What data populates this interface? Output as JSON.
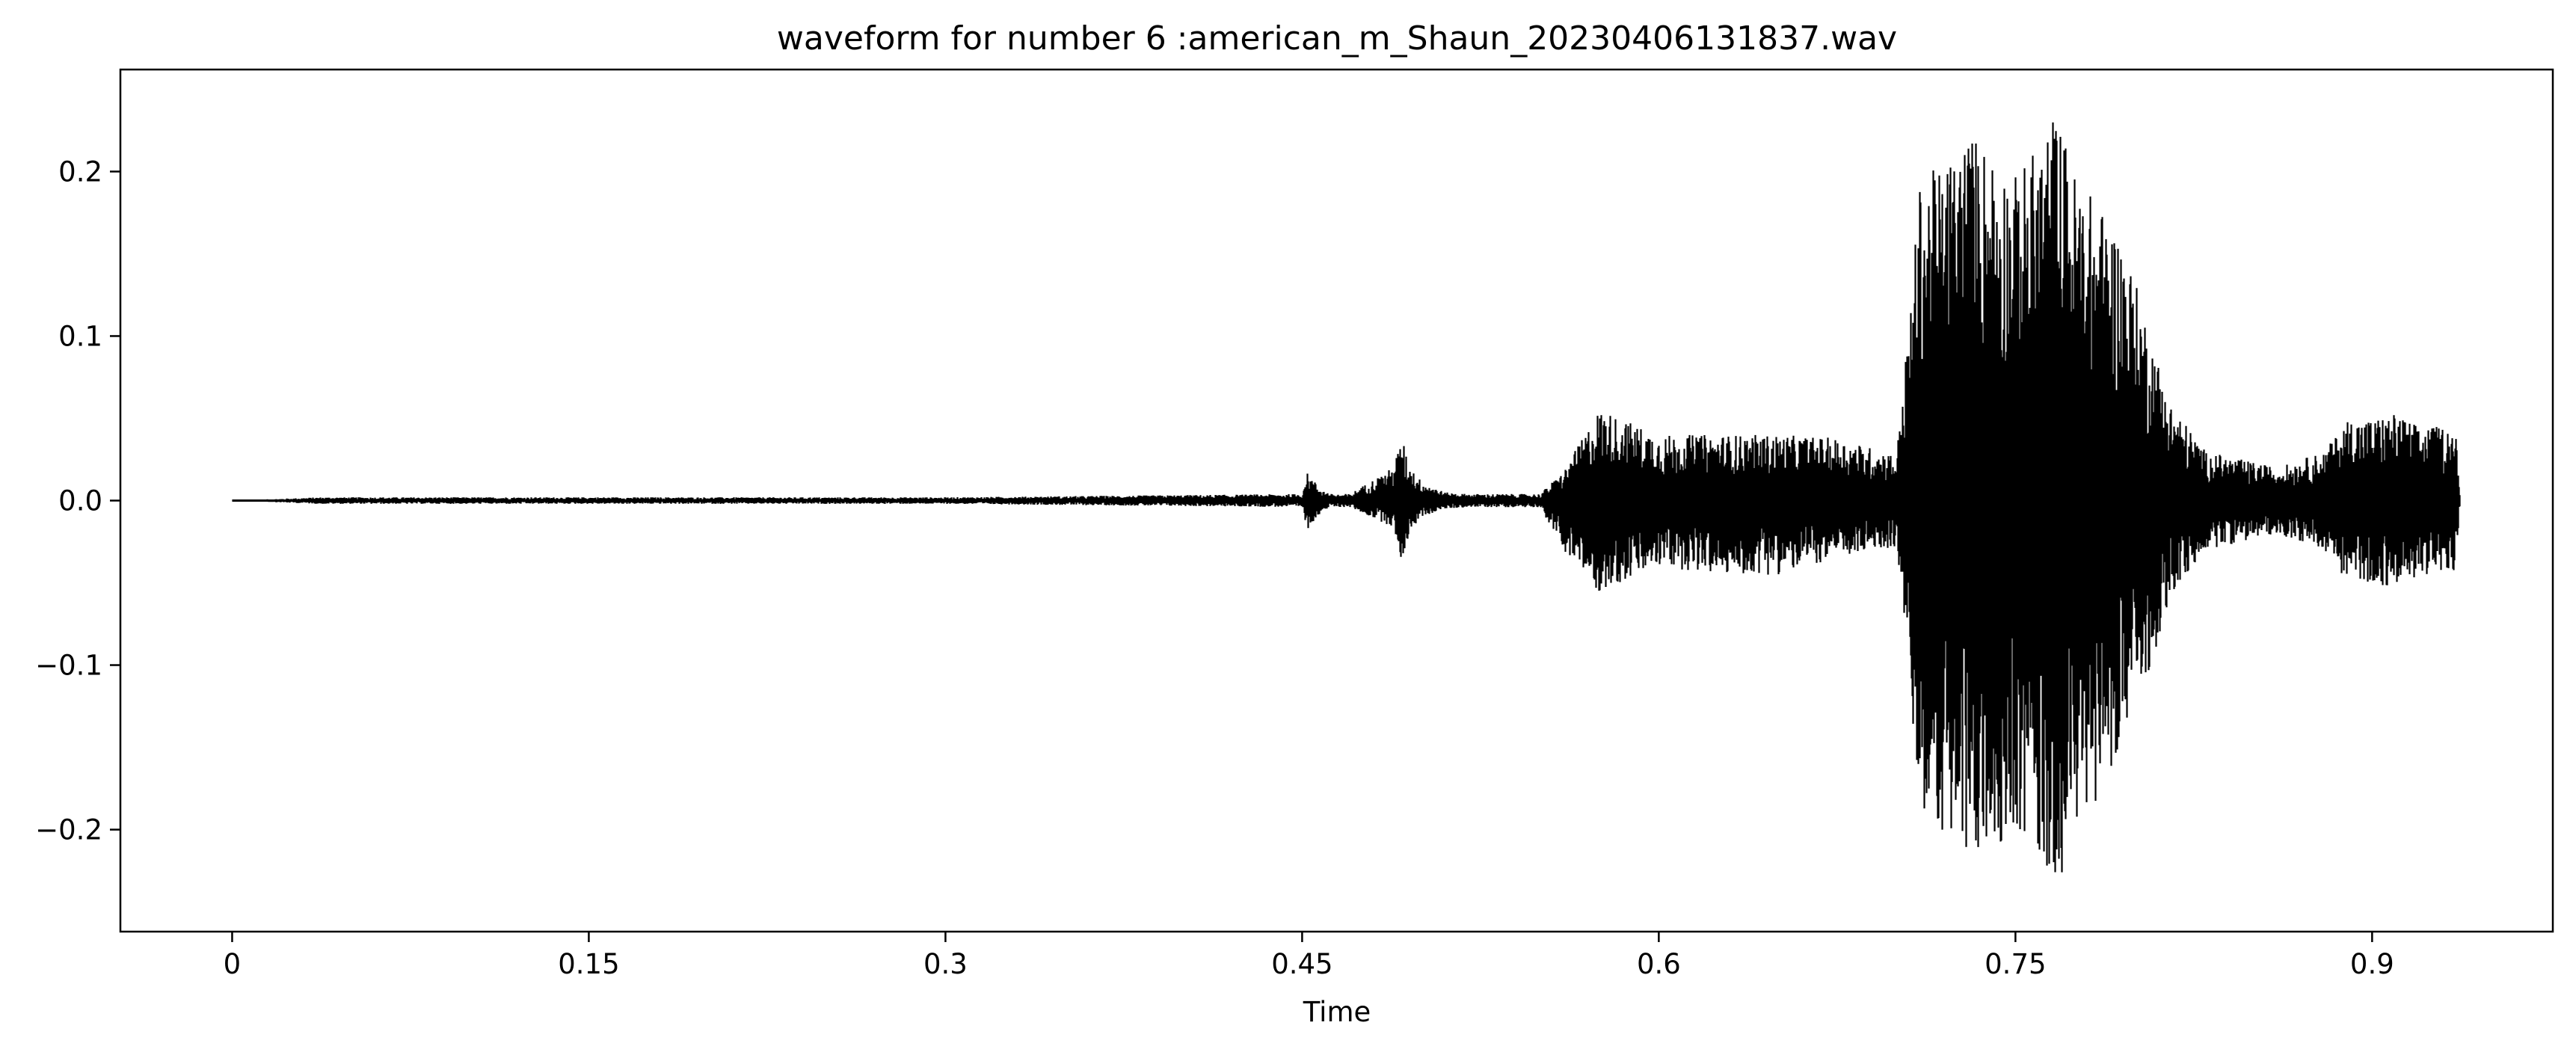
{
  "chart_data": {
    "type": "line",
    "title": "waveform for number 6 :american_m_Shaun_20230406131837.wav",
    "xlabel": "Time",
    "ylabel": "",
    "xlim": [
      -0.047,
      0.976
    ],
    "ylim": [
      -0.262,
      0.262
    ],
    "x_ticks": [
      0,
      0.15,
      0.3,
      0.45,
      0.6,
      0.75,
      0.9
    ],
    "x_tick_labels": [
      "0",
      "0.15",
      "0.3",
      "0.45",
      "0.6",
      "0.75",
      "0.9"
    ],
    "y_ticks": [
      -0.2,
      -0.1,
      0.0,
      0.1,
      0.2
    ],
    "y_tick_labels": [
      "−0.2",
      "−0.1",
      "0.0",
      "0.1",
      "0.2"
    ],
    "grid": false,
    "legend": null,
    "line_color": "#000000",
    "series": [
      {
        "values_note": "",
        "x": [
          0.0,
          0.037,
          0.15,
          0.3,
          0.45,
          0.452,
          0.455,
          0.458,
          0.462,
          0.47,
          0.488,
          0.492,
          0.495,
          0.5,
          0.51,
          0.52,
          0.55,
          0.56,
          0.575,
          0.6,
          0.625,
          0.65,
          0.675,
          0.7,
          0.705,
          0.71,
          0.72,
          0.73,
          0.74,
          0.75,
          0.76,
          0.767,
          0.775,
          0.785,
          0.795,
          0.805,
          0.815,
          0.83,
          0.86,
          0.88,
          0.89,
          0.9,
          0.91,
          0.92,
          0.935,
          0.937
        ],
        "envelope_max": [
          0.0,
          0.002,
          0.002,
          0.002,
          0.004,
          0.017,
          0.012,
          0.007,
          0.004,
          0.004,
          0.02,
          0.038,
          0.022,
          0.012,
          0.005,
          0.004,
          0.004,
          0.018,
          0.056,
          0.04,
          0.04,
          0.04,
          0.038,
          0.028,
          0.105,
          0.196,
          0.205,
          0.226,
          0.215,
          0.198,
          0.218,
          0.239,
          0.2,
          0.18,
          0.16,
          0.11,
          0.06,
          0.03,
          0.02,
          0.03,
          0.05,
          0.05,
          0.053,
          0.045,
          0.045,
          0.0
        ],
        "envelope_min": [
          0.0,
          -0.002,
          -0.002,
          -0.002,
          -0.004,
          -0.018,
          -0.012,
          -0.007,
          -0.004,
          -0.004,
          -0.016,
          -0.038,
          -0.02,
          -0.01,
          -0.005,
          -0.004,
          -0.004,
          -0.03,
          -0.056,
          -0.04,
          -0.045,
          -0.045,
          -0.035,
          -0.028,
          -0.105,
          -0.195,
          -0.202,
          -0.225,
          -0.212,
          -0.2,
          -0.218,
          -0.238,
          -0.2,
          -0.18,
          -0.145,
          -0.11,
          -0.06,
          -0.03,
          -0.02,
          -0.03,
          -0.05,
          -0.05,
          -0.054,
          -0.045,
          -0.045,
          0.0
        ]
      }
    ]
  }
}
